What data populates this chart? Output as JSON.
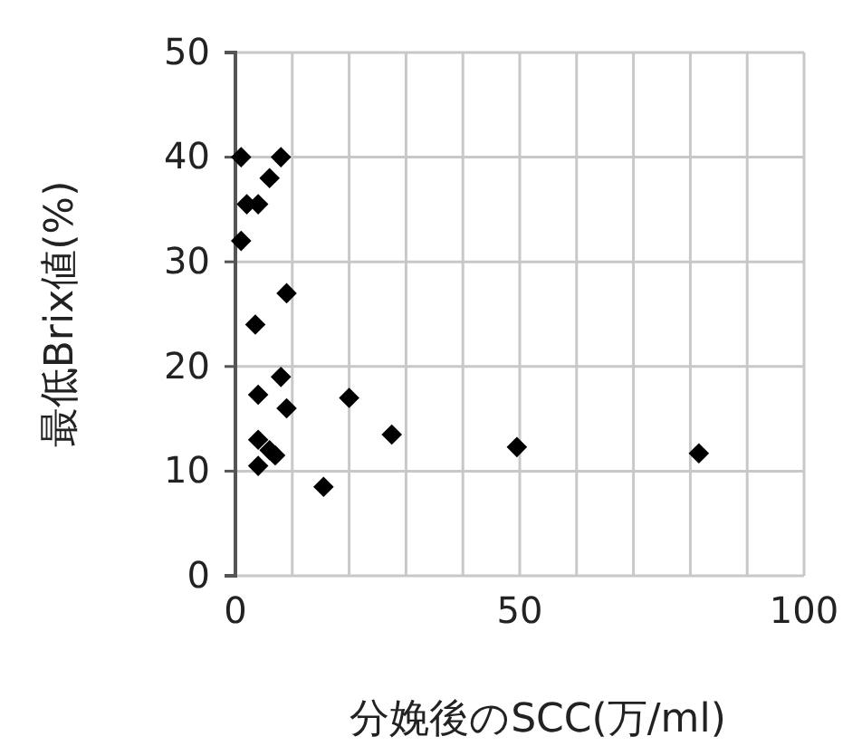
{
  "chart_data": {
    "type": "scatter",
    "xlabel": "分娩後のSCC(万/ml)",
    "ylabel": "最低Brix値(%)",
    "x": [
      1,
      8,
      6,
      2,
      4,
      1,
      9,
      3.5,
      8,
      4,
      9,
      20,
      27.5,
      49.5,
      81.5,
      15.5,
      4,
      6,
      7,
      4
    ],
    "values": [
      40,
      40,
      38,
      35.5,
      35.5,
      32,
      27,
      24,
      19,
      17.3,
      16,
      17,
      13.5,
      12.3,
      11.7,
      8.5,
      13,
      12,
      11.5,
      10.5
    ],
    "color": "#000000",
    "marker": "diamond",
    "xlim": [
      0,
      100
    ],
    "xticks": [
      0,
      {
        "value": 10,
        "label": null
      },
      {
        "value": 20,
        "label": null
      },
      {
        "value": 30,
        "label": null
      },
      {
        "value": 40,
        "label": null
      },
      50,
      {
        "value": 60,
        "label": null
      },
      {
        "value": 70,
        "label": null
      },
      {
        "value": 80,
        "label": null
      },
      {
        "value": 90,
        "label": null
      },
      100
    ],
    "ylim": [
      0,
      50
    ],
    "yticks": [
      0,
      10,
      20,
      30,
      40,
      50
    ],
    "grid": true
  }
}
